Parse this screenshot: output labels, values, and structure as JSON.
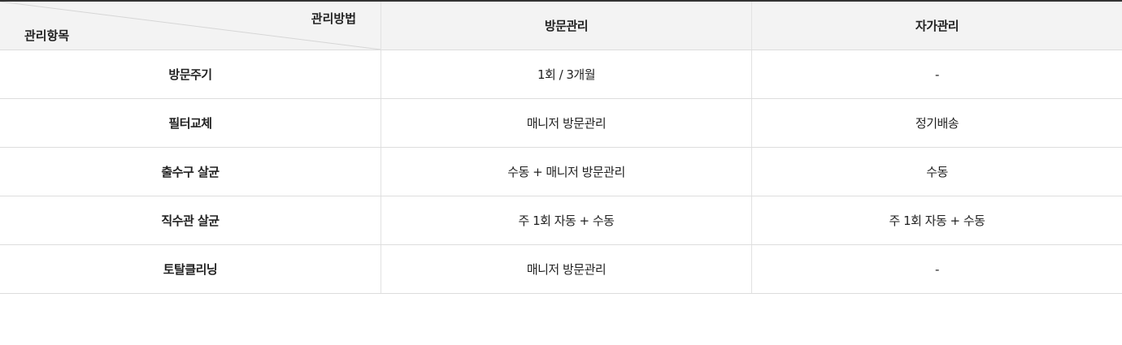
{
  "header": {
    "corner_top_label": "관리방법",
    "corner_bottom_label": "관리항목",
    "col_visit": "방문관리",
    "col_self": "자가관리"
  },
  "rows": [
    {
      "item": "방문주기",
      "visit": "1회 / 3개월",
      "self": "-"
    },
    {
      "item": "필터교체",
      "visit": "매니저 방문관리",
      "self": "정기배송"
    },
    {
      "item": "출수구 살균",
      "visit": "수동 + 매니저 방문관리",
      "self": "수동"
    },
    {
      "item": "직수관 살균",
      "visit": "주 1회 자동 + 수동",
      "self": "주 1회 자동 + 수동"
    },
    {
      "item": "토탈클리닝",
      "visit": "매니저 방문관리",
      "self": "-"
    }
  ]
}
